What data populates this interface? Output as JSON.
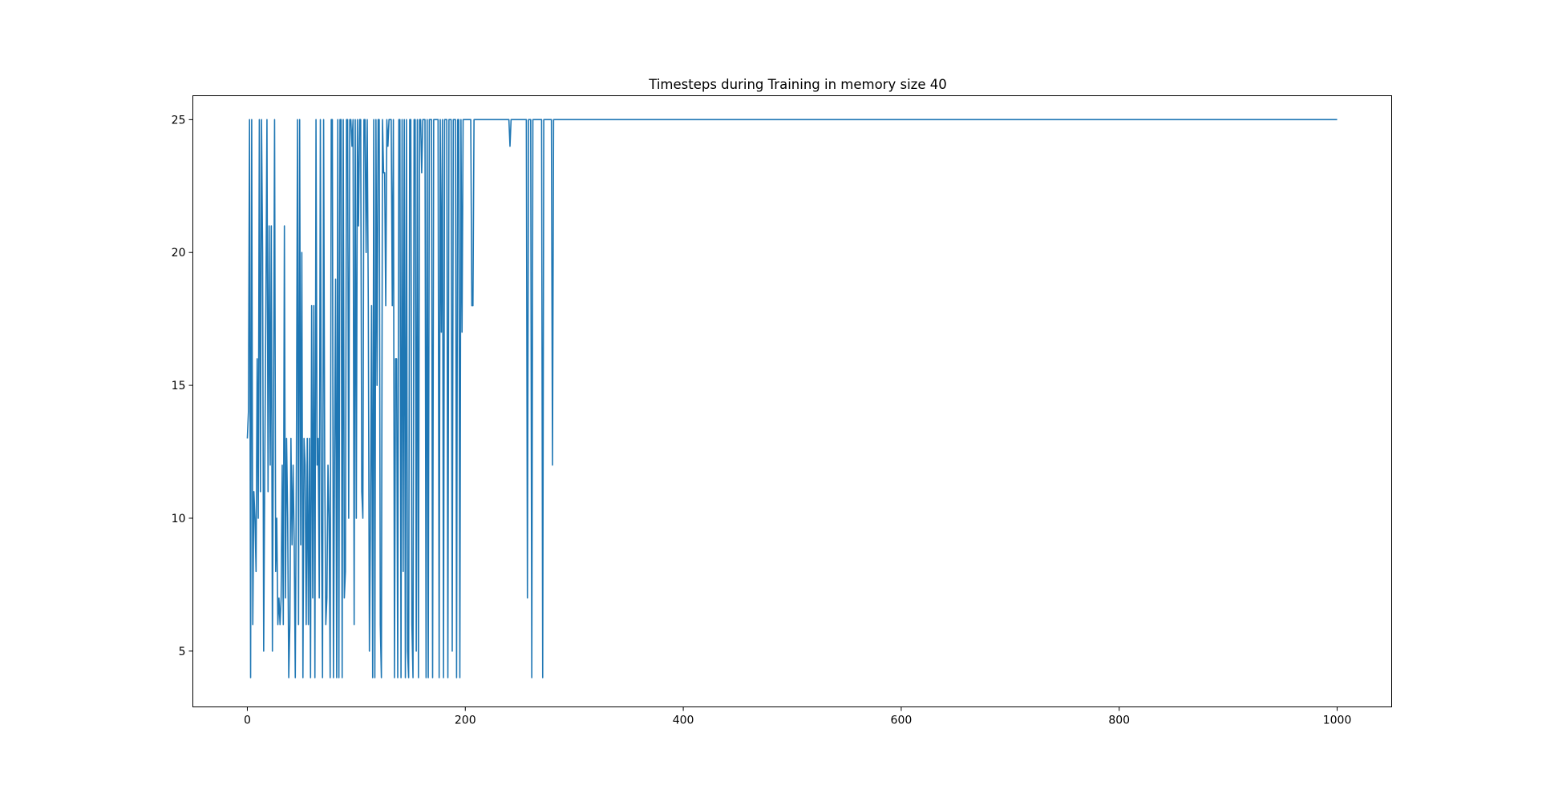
{
  "chart_data": {
    "type": "line",
    "title": "Timesteps during Training in memory size 40",
    "xlabel": "",
    "ylabel": "",
    "xlim": [
      -50,
      1050
    ],
    "ylim": [
      2.9,
      25.9
    ],
    "x_ticks": [
      0,
      200,
      400,
      600,
      800,
      1000
    ],
    "y_ticks": [
      5,
      10,
      15,
      20,
      25
    ],
    "grid": false,
    "line_color": "#1f77b4",
    "series": [
      {
        "name": "",
        "points": [
          [
            0,
            13
          ],
          [
            1,
            14
          ],
          [
            2,
            25
          ],
          [
            3,
            4
          ],
          [
            4,
            25
          ],
          [
            5,
            6
          ],
          [
            6,
            11
          ],
          [
            7,
            10
          ],
          [
            8,
            8
          ],
          [
            9,
            16
          ],
          [
            10,
            10
          ],
          [
            11,
            25
          ],
          [
            12,
            11
          ],
          [
            13,
            25
          ],
          [
            14,
            20
          ],
          [
            15,
            5
          ],
          [
            16,
            12
          ],
          [
            17,
            18
          ],
          [
            18,
            25
          ],
          [
            19,
            11
          ],
          [
            20,
            21
          ],
          [
            21,
            12
          ],
          [
            22,
            21
          ],
          [
            23,
            5
          ],
          [
            24,
            14
          ],
          [
            25,
            25
          ],
          [
            26,
            8
          ],
          [
            27,
            10
          ],
          [
            28,
            6
          ],
          [
            29,
            7
          ],
          [
            30,
            6
          ],
          [
            31,
            7
          ],
          [
            32,
            12
          ],
          [
            33,
            6
          ],
          [
            34,
            21
          ],
          [
            35,
            7
          ],
          [
            36,
            13
          ],
          [
            37,
            10
          ],
          [
            38,
            4
          ],
          [
            39,
            6
          ],
          [
            40,
            13
          ],
          [
            41,
            9
          ],
          [
            42,
            12
          ],
          [
            43,
            9
          ],
          [
            44,
            4
          ],
          [
            45,
            12
          ],
          [
            46,
            25
          ],
          [
            47,
            6
          ],
          [
            48,
            25
          ],
          [
            49,
            9
          ],
          [
            50,
            20
          ],
          [
            51,
            4
          ],
          [
            52,
            13
          ],
          [
            53,
            12
          ],
          [
            54,
            6
          ],
          [
            55,
            13
          ],
          [
            56,
            6
          ],
          [
            57,
            13
          ],
          [
            58,
            4
          ],
          [
            59,
            18
          ],
          [
            60,
            7
          ],
          [
            61,
            18
          ],
          [
            62,
            4
          ],
          [
            63,
            25
          ],
          [
            64,
            12
          ],
          [
            65,
            13
          ],
          [
            66,
            7
          ],
          [
            67,
            25
          ],
          [
            68,
            10
          ],
          [
            69,
            4
          ],
          [
            70,
            25
          ],
          [
            71,
            12
          ],
          [
            72,
            6
          ],
          [
            73,
            7
          ],
          [
            74,
            12
          ],
          [
            75,
            10
          ],
          [
            76,
            4
          ],
          [
            77,
            25
          ],
          [
            78,
            25
          ],
          [
            79,
            4
          ],
          [
            80,
            12
          ],
          [
            81,
            19
          ],
          [
            82,
            4
          ],
          [
            83,
            25
          ],
          [
            84,
            4
          ],
          [
            85,
            25
          ],
          [
            86,
            25
          ],
          [
            87,
            4
          ],
          [
            88,
            25
          ],
          [
            89,
            7
          ],
          [
            90,
            8
          ],
          [
            91,
            25
          ],
          [
            92,
            25
          ],
          [
            93,
            10
          ],
          [
            94,
            25
          ],
          [
            95,
            25
          ],
          [
            96,
            24
          ],
          [
            97,
            25
          ],
          [
            98,
            6
          ],
          [
            99,
            25
          ],
          [
            100,
            10
          ],
          [
            101,
            25
          ],
          [
            102,
            21
          ],
          [
            103,
            25
          ],
          [
            104,
            25
          ],
          [
            105,
            11
          ],
          [
            106,
            10
          ],
          [
            107,
            25
          ],
          [
            108,
            25
          ],
          [
            109,
            20
          ],
          [
            110,
            25
          ],
          [
            111,
            18
          ],
          [
            112,
            5
          ],
          [
            113,
            10
          ],
          [
            114,
            18
          ],
          [
            115,
            4
          ],
          [
            116,
            25
          ],
          [
            117,
            4
          ],
          [
            118,
            25
          ],
          [
            119,
            15
          ],
          [
            120,
            25
          ],
          [
            121,
            25
          ],
          [
            122,
            6
          ],
          [
            123,
            4
          ],
          [
            124,
            25
          ],
          [
            125,
            23
          ],
          [
            126,
            23
          ],
          [
            127,
            18
          ],
          [
            128,
            25
          ],
          [
            129,
            24
          ],
          [
            130,
            25
          ],
          [
            131,
            25
          ],
          [
            132,
            25
          ],
          [
            133,
            18
          ],
          [
            134,
            25
          ],
          [
            135,
            4
          ],
          [
            136,
            16
          ],
          [
            137,
            16
          ],
          [
            138,
            4
          ],
          [
            139,
            25
          ],
          [
            140,
            25
          ],
          [
            141,
            4
          ],
          [
            142,
            25
          ],
          [
            143,
            8
          ],
          [
            144,
            25
          ],
          [
            145,
            4
          ],
          [
            146,
            25
          ],
          [
            147,
            5
          ],
          [
            148,
            4
          ],
          [
            149,
            25
          ],
          [
            150,
            25
          ],
          [
            151,
            6
          ],
          [
            152,
            4
          ],
          [
            153,
            25
          ],
          [
            154,
            25
          ],
          [
            155,
            5
          ],
          [
            156,
            25
          ],
          [
            157,
            4
          ],
          [
            158,
            25
          ],
          [
            159,
            25
          ],
          [
            160,
            23
          ],
          [
            161,
            25
          ],
          [
            162,
            25
          ],
          [
            163,
            25
          ],
          [
            164,
            4
          ],
          [
            165,
            25
          ],
          [
            166,
            4
          ],
          [
            167,
            25
          ],
          [
            168,
            25
          ],
          [
            169,
            25
          ],
          [
            170,
            4
          ],
          [
            171,
            25
          ],
          [
            172,
            25
          ],
          [
            173,
            25
          ],
          [
            174,
            25
          ],
          [
            175,
            25
          ],
          [
            176,
            4
          ],
          [
            177,
            25
          ],
          [
            178,
            17
          ],
          [
            179,
            25
          ],
          [
            180,
            4
          ],
          [
            181,
            25
          ],
          [
            182,
            25
          ],
          [
            183,
            25
          ],
          [
            184,
            4
          ],
          [
            185,
            25
          ],
          [
            186,
            25
          ],
          [
            187,
            25
          ],
          [
            188,
            5
          ],
          [
            189,
            25
          ],
          [
            190,
            25
          ],
          [
            191,
            25
          ],
          [
            192,
            4
          ],
          [
            193,
            25
          ],
          [
            194,
            25
          ],
          [
            195,
            4
          ],
          [
            196,
            25
          ],
          [
            197,
            17
          ],
          [
            198,
            25
          ],
          [
            199,
            25
          ],
          [
            200,
            25
          ],
          [
            201,
            25
          ],
          [
            202,
            25
          ],
          [
            203,
            25
          ],
          [
            204,
            25
          ],
          [
            205,
            25
          ],
          [
            206,
            18
          ],
          [
            207,
            18
          ],
          [
            208,
            25
          ],
          [
            209,
            25
          ],
          [
            240,
            25
          ],
          [
            241,
            24
          ],
          [
            242,
            25
          ],
          [
            256,
            25
          ],
          [
            257,
            7
          ],
          [
            258,
            25
          ],
          [
            259,
            25
          ],
          [
            260,
            25
          ],
          [
            261,
            4
          ],
          [
            262,
            25
          ],
          [
            263,
            25
          ],
          [
            270,
            25
          ],
          [
            271,
            4
          ],
          [
            272,
            25
          ],
          [
            279,
            25
          ],
          [
            280,
            12
          ],
          [
            281,
            25
          ],
          [
            1000,
            25
          ]
        ]
      }
    ]
  }
}
